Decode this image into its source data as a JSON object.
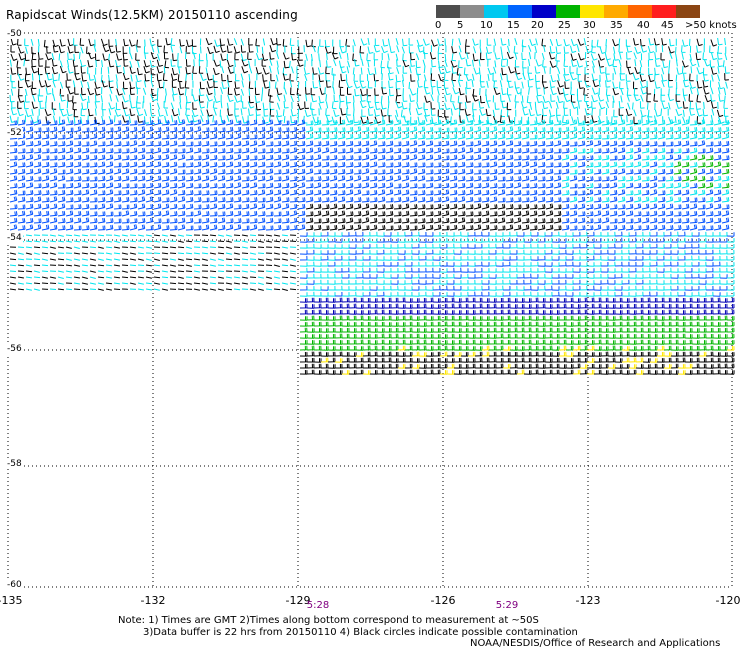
{
  "title": "Rapidscat Winds(12.5KM) 20150110 ascending",
  "color_scale": {
    "colors": [
      "#4d4d4d",
      "#8c8c8c",
      "#00c8f0",
      "#0064ff",
      "#0000c8",
      "#00b400",
      "#ffe600",
      "#ffaa00",
      "#ff6400",
      "#ff1e1e",
      "#8b4513",
      "#d2b48c",
      "#ff00ff",
      "#9400d3",
      "#3c0078"
    ],
    "labels": [
      "0",
      "5",
      "10",
      "15",
      "20",
      "25",
      "30",
      "35",
      "40",
      "45",
      ">50 knots"
    ],
    "units": "knots"
  },
  "axes": {
    "lon_ticks": [
      "-135",
      "-132",
      "-129",
      "-126",
      "-123",
      "-120"
    ],
    "lat_ticks": [
      "-50",
      "-52",
      "-54",
      "-56",
      "-58",
      "-60"
    ]
  },
  "time_labels": [
    "5:28",
    "5:29"
  ],
  "notes": {
    "line1": "Note: 1) Times are GMT 2)Times along bottom correspond to measurement at ~50S",
    "line2": "3)Data buffer is 22 hrs from 20150110 4) Black circles indicate possible contamination",
    "credit": "NOAA/NESDIS/Office of Research and Applications"
  },
  "speed_colors": {
    "calm": "#000000",
    "light": "#00e5ee",
    "moderate": "#0050ff",
    "fresh": "#0000b4",
    "strong": "#00b400",
    "gale": "#ffe600"
  }
}
